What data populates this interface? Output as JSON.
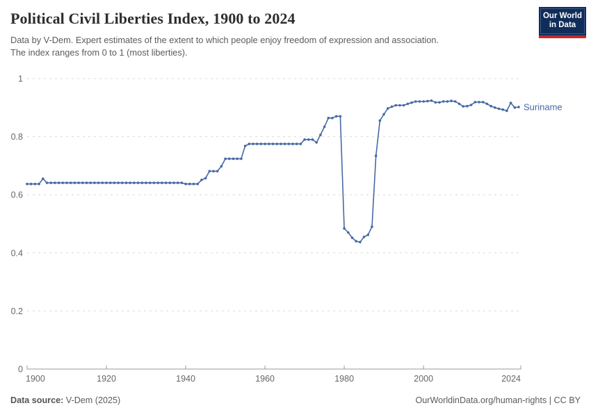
{
  "header": {
    "title": "Political Civil Liberties Index, 1900 to 2024",
    "subtitle_line1": "Data by V-Dem. Expert estimates of the extent to which people enjoy freedom of expression and association.",
    "subtitle_line2": "The index ranges from 0 to 1 (most liberties)."
  },
  "logo": {
    "line1": "Our World",
    "line2": "in Data",
    "bg_color": "#102d59",
    "stripe_color": "#c5292e"
  },
  "footer": {
    "source_label": "Data source:",
    "source_value": " V-Dem (2025)",
    "license": "OurWorldinData.org/human-rights | CC BY"
  },
  "colors": {
    "series": "#4769a4",
    "grid": "#d9d9d9",
    "axis": "#999999",
    "tick_label": "#666666",
    "title": "#2d2d2d",
    "text_gray": "#5b5b5b"
  },
  "chart_data": {
    "type": "line",
    "title": "Political Civil Liberties Index, 1900 to 2024",
    "xlabel": "",
    "ylabel": "",
    "xlim": [
      1900,
      2024
    ],
    "ylim": [
      0,
      1
    ],
    "xticks": [
      1900,
      1920,
      1940,
      1960,
      1980,
      2000,
      2024
    ],
    "yticks": [
      0,
      0.2,
      0.4,
      0.6,
      0.8,
      1
    ],
    "grid": "dashed horizontal",
    "legend_position": "end-of-line label",
    "series": [
      {
        "name": "Suriname",
        "color": "#4769a4",
        "x": [
          1900,
          1901,
          1902,
          1903,
          1904,
          1905,
          1906,
          1907,
          1908,
          1909,
          1910,
          1911,
          1912,
          1913,
          1914,
          1915,
          1916,
          1917,
          1918,
          1919,
          1920,
          1921,
          1922,
          1923,
          1924,
          1925,
          1926,
          1927,
          1928,
          1929,
          1930,
          1931,
          1932,
          1933,
          1934,
          1935,
          1936,
          1937,
          1938,
          1939,
          1940,
          1941,
          1942,
          1943,
          1944,
          1945,
          1946,
          1947,
          1948,
          1949,
          1950,
          1951,
          1952,
          1953,
          1954,
          1955,
          1956,
          1957,
          1958,
          1959,
          1960,
          1961,
          1962,
          1963,
          1964,
          1965,
          1966,
          1967,
          1968,
          1969,
          1970,
          1971,
          1972,
          1973,
          1974,
          1975,
          1976,
          1977,
          1978,
          1979,
          1980,
          1981,
          1982,
          1983,
          1984,
          1985,
          1986,
          1987,
          1988,
          1989,
          1990,
          1991,
          1992,
          1993,
          1994,
          1995,
          1996,
          1997,
          1998,
          1999,
          2000,
          2001,
          2002,
          2003,
          2004,
          2005,
          2006,
          2007,
          2008,
          2009,
          2010,
          2011,
          2012,
          2013,
          2014,
          2015,
          2016,
          2017,
          2018,
          2019,
          2020,
          2021,
          2022,
          2023,
          2024
        ],
        "values": [
          0.637,
          0.637,
          0.637,
          0.637,
          0.655,
          0.641,
          0.641,
          0.641,
          0.641,
          0.641,
          0.641,
          0.641,
          0.641,
          0.641,
          0.641,
          0.641,
          0.641,
          0.641,
          0.641,
          0.641,
          0.641,
          0.641,
          0.641,
          0.641,
          0.641,
          0.641,
          0.641,
          0.641,
          0.641,
          0.641,
          0.641,
          0.641,
          0.641,
          0.641,
          0.641,
          0.641,
          0.641,
          0.641,
          0.641,
          0.641,
          0.637,
          0.637,
          0.637,
          0.637,
          0.651,
          0.657,
          0.681,
          0.681,
          0.681,
          0.698,
          0.724,
          0.724,
          0.724,
          0.724,
          0.724,
          0.768,
          0.775,
          0.775,
          0.775,
          0.775,
          0.775,
          0.775,
          0.775,
          0.775,
          0.775,
          0.775,
          0.775,
          0.775,
          0.775,
          0.775,
          0.79,
          0.79,
          0.79,
          0.78,
          0.806,
          0.834,
          0.864,
          0.864,
          0.87,
          0.87,
          0.484,
          0.47,
          0.452,
          0.44,
          0.437,
          0.455,
          0.462,
          0.49,
          0.734,
          0.855,
          0.877,
          0.897,
          0.903,
          0.908,
          0.908,
          0.908,
          0.913,
          0.917,
          0.921,
          0.921,
          0.921,
          0.922,
          0.924,
          0.918,
          0.918,
          0.921,
          0.921,
          0.923,
          0.921,
          0.913,
          0.904,
          0.905,
          0.909,
          0.919,
          0.919,
          0.919,
          0.913,
          0.905,
          0.9,
          0.896,
          0.893,
          0.889,
          0.916,
          0.9,
          0.902
        ]
      }
    ]
  }
}
